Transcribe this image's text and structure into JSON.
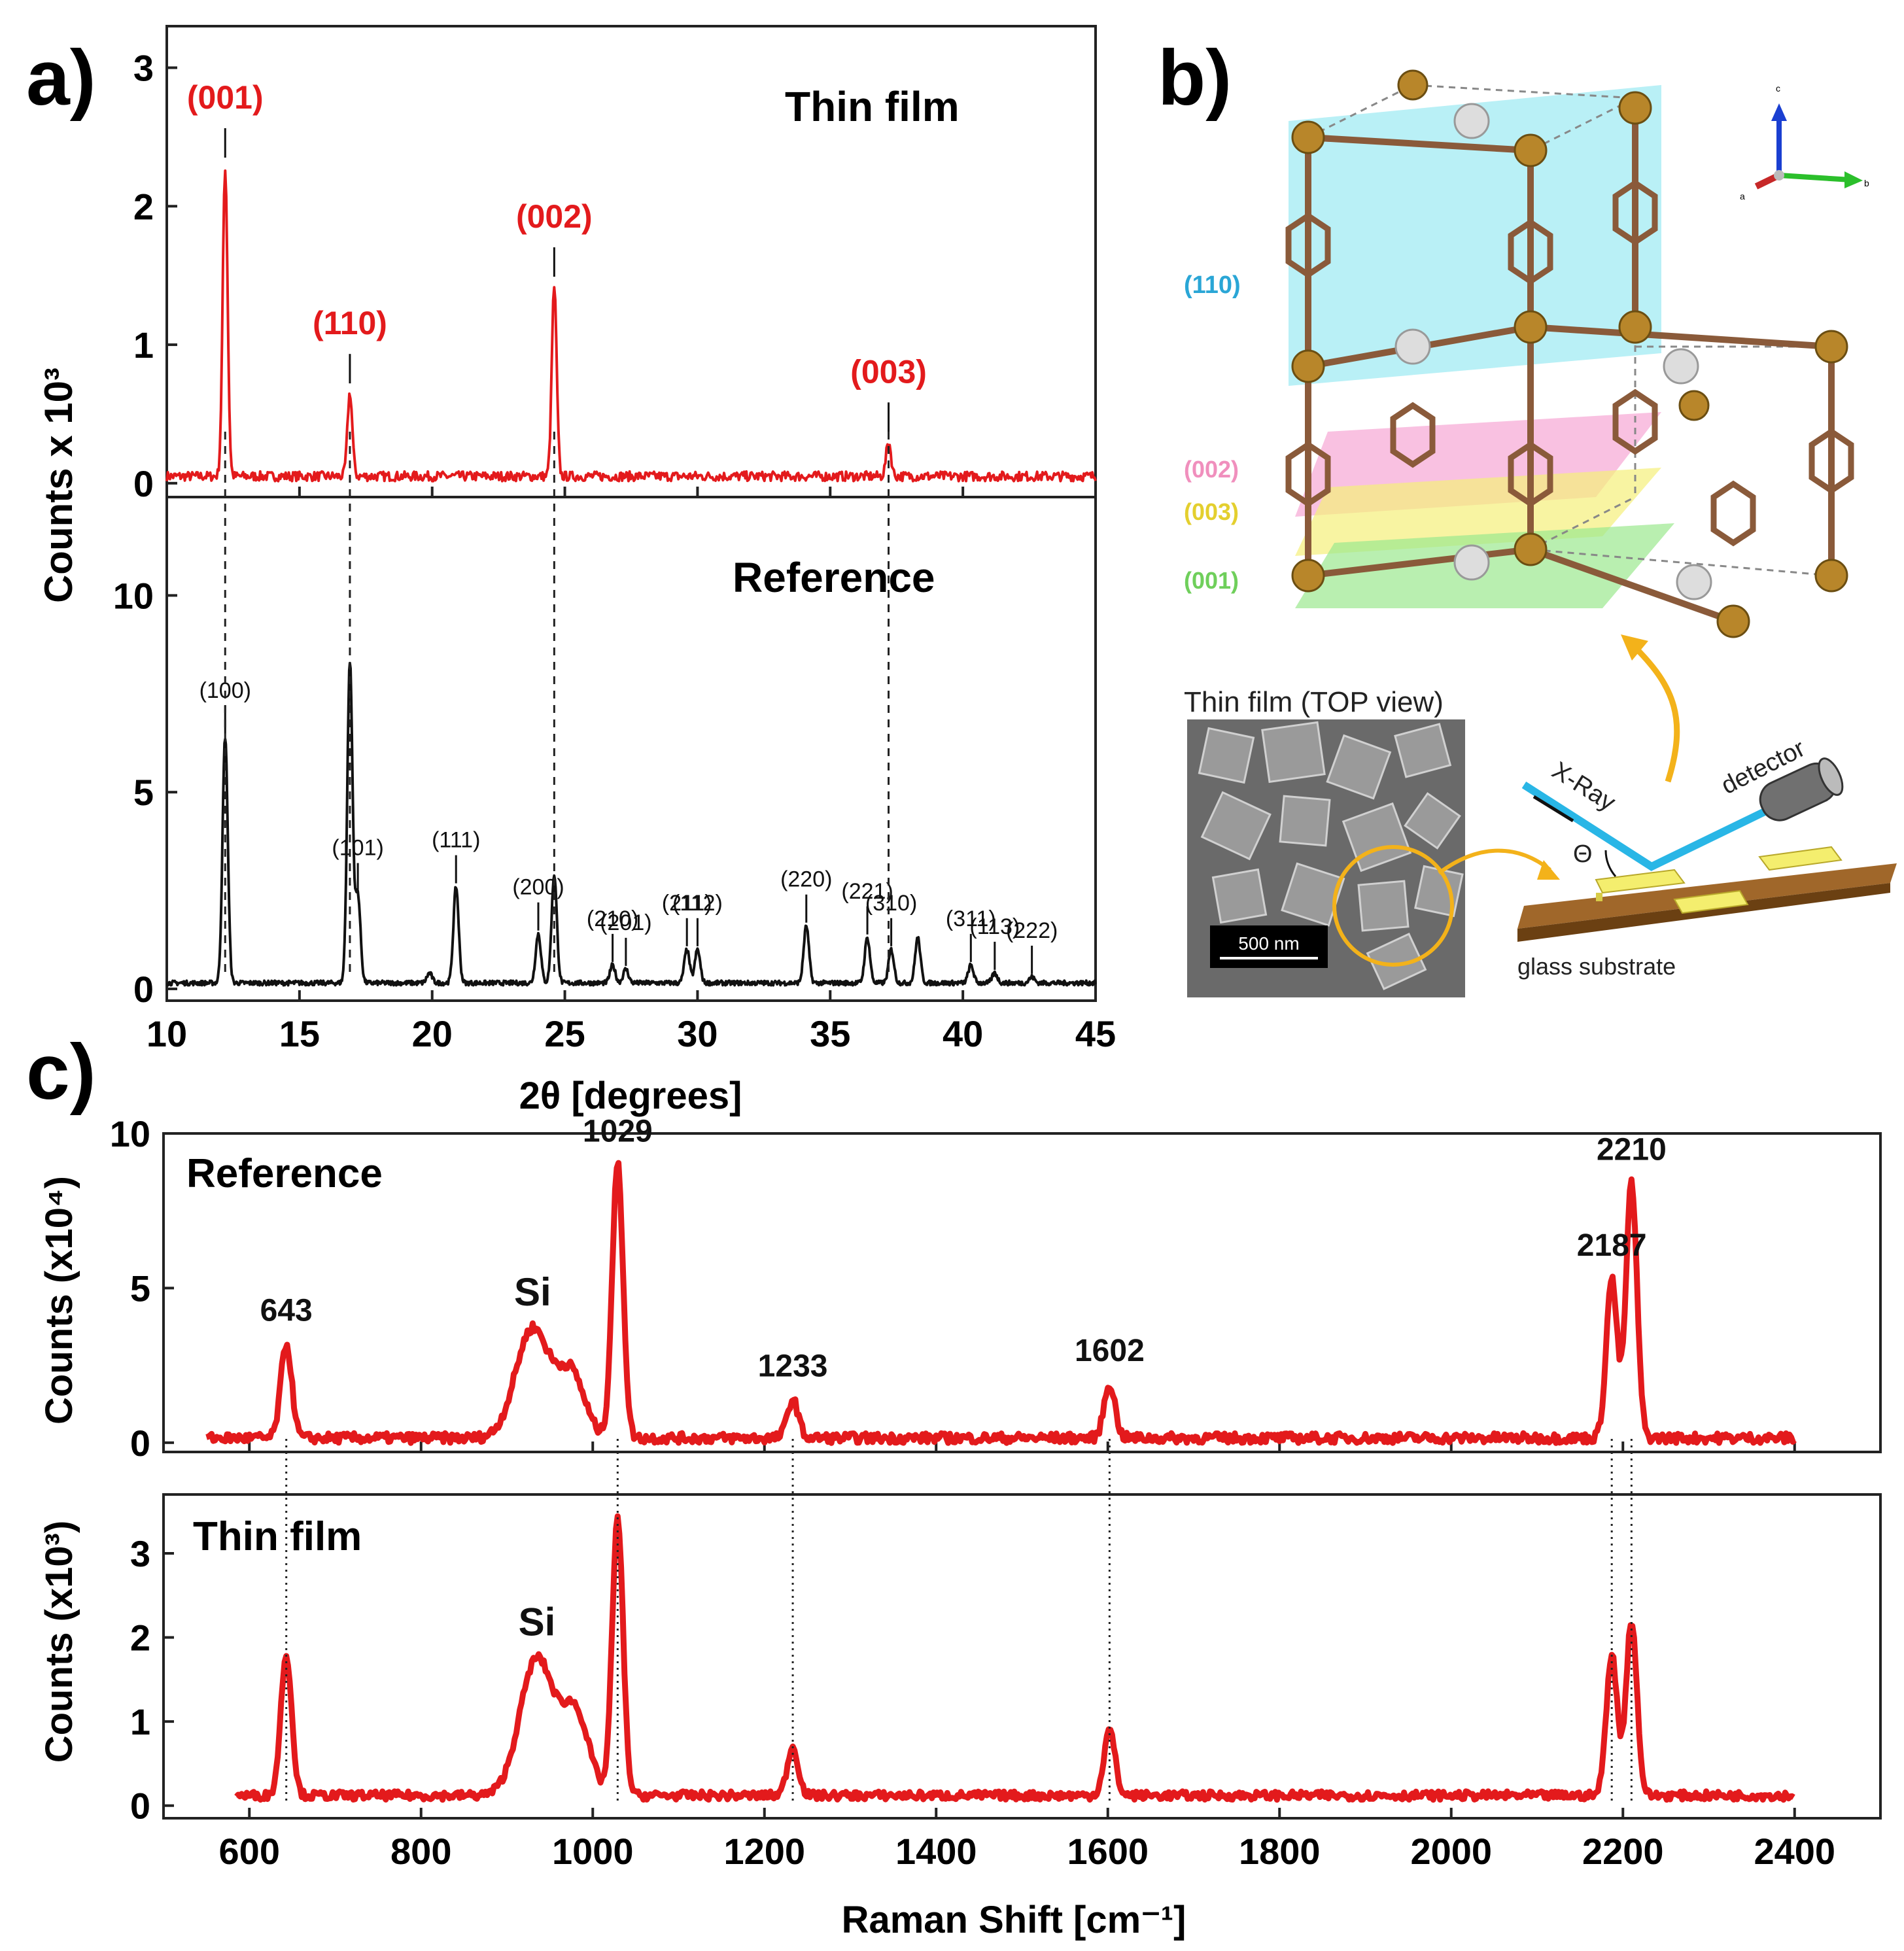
{
  "panel_labels": {
    "a": "a)",
    "b": "b)",
    "c": "c)"
  },
  "colors": {
    "red": "#e31a1c",
    "black": "#111111",
    "cyan_plane": "#7fe3ef",
    "pink_plane": "#f7a6d4",
    "yellow_plane": "#f5f07a",
    "green_plane": "#9be88e",
    "beam": "#29b6e6",
    "arrow": "#f3b21a",
    "label_110": "#2aa6d6",
    "label_002": "#f08fbd",
    "label_003": "#e4cf2e",
    "label_001": "#6fcf5b"
  },
  "panel_b": {
    "plane_labels": [
      "(110)",
      "(002)",
      "(003)",
      "(001)"
    ],
    "inset_title": "Thin film (TOP view)",
    "scale_bar": "500 nm",
    "xray_label": "X-Ray",
    "detector_label": "detector",
    "theta_label": "Θ",
    "substrate_label": "glass substrate",
    "axes_labels": [
      "c",
      "b",
      "a"
    ]
  },
  "chart_data": [
    {
      "type": "line",
      "panel": "a-top",
      "title": "Thin film",
      "ylabel": "Counts x 10³",
      "xlim": [
        10,
        45
      ],
      "ylim": [
        -0.1,
        3.3
      ],
      "yticks": [
        0,
        1,
        2,
        3
      ],
      "baseline": 0.05,
      "peaks": [
        {
          "x": 12.2,
          "y": 2.28,
          "label": "(001)"
        },
        {
          "x": 16.9,
          "y": 0.65,
          "label": "(110)"
        },
        {
          "x": 24.6,
          "y": 1.42,
          "label": "(002)"
        },
        {
          "x": 37.2,
          "y": 0.3,
          "label": "(003)"
        }
      ]
    },
    {
      "type": "line",
      "panel": "a-bottom",
      "title": "Reference",
      "xlabel": "2θ [degrees]",
      "xlim": [
        10,
        45
      ],
      "xticks": [
        10,
        15,
        20,
        25,
        30,
        35,
        40,
        45
      ],
      "ylim": [
        -0.3,
        12.5
      ],
      "yticks": [
        0,
        5,
        10
      ],
      "peaks": [
        {
          "x": 12.2,
          "y": 6.4,
          "label": "(100)"
        },
        {
          "x": 16.9,
          "y": 8.3
        },
        {
          "x": 17.2,
          "y": 2.4,
          "label": "(101)"
        },
        {
          "x": 19.9,
          "y": 0.4
        },
        {
          "x": 20.9,
          "y": 2.6,
          "label": "(111)"
        },
        {
          "x": 24.0,
          "y": 1.4,
          "label": "(200)"
        },
        {
          "x": 24.6,
          "y": 2.9
        },
        {
          "x": 26.8,
          "y": 0.6,
          "label": "(210)"
        },
        {
          "x": 27.3,
          "y": 0.5,
          "label": "(201)"
        },
        {
          "x": 29.6,
          "y": 1.0,
          "label": "(211)"
        },
        {
          "x": 30.0,
          "y": 1.0,
          "label": "(112)"
        },
        {
          "x": 34.1,
          "y": 1.6,
          "label": "(220)"
        },
        {
          "x": 36.4,
          "y": 1.3,
          "label": "(221)"
        },
        {
          "x": 37.3,
          "y": 1.0,
          "label": "(310)"
        },
        {
          "x": 38.3,
          "y": 1.3
        },
        {
          "x": 40.3,
          "y": 0.6,
          "label": "(311)"
        },
        {
          "x": 41.2,
          "y": 0.4,
          "label": "(113)"
        },
        {
          "x": 42.6,
          "y": 0.3,
          "label": "(222)"
        }
      ]
    },
    {
      "type": "line",
      "panel": "c-top",
      "title": "Reference",
      "ylabel": "Counts (x10⁴)",
      "xlim": [
        500,
        2500
      ],
      "ylim": [
        -0.3,
        10
      ],
      "yticks": [
        0,
        5,
        10
      ],
      "peaks": [
        {
          "x": 643,
          "y": 3.2,
          "label": "643"
        },
        {
          "x": 930,
          "y": 3.7,
          "label": "Si"
        },
        {
          "x": 1029,
          "y": 9.0,
          "label": "1029"
        },
        {
          "x": 1233,
          "y": 1.4,
          "label": "1233"
        },
        {
          "x": 1602,
          "y": 1.9,
          "label": "1602"
        },
        {
          "x": 2187,
          "y": 5.3,
          "label": "2187"
        },
        {
          "x": 2210,
          "y": 8.4,
          "label": "2210"
        }
      ]
    },
    {
      "type": "line",
      "panel": "c-bottom",
      "title": "Thin film",
      "ylabel": "Counts (x10³)",
      "xlabel": "Raman Shift [cm⁻¹]",
      "xlim": [
        500,
        2500
      ],
      "xticks": [
        600,
        800,
        1000,
        1200,
        1400,
        1600,
        1800,
        2000,
        2200,
        2400
      ],
      "ylim": [
        -0.15,
        3.7
      ],
      "yticks": [
        0,
        1,
        2,
        3
      ],
      "peaks": [
        {
          "x": 643,
          "y": 1.8
        },
        {
          "x": 935,
          "y": 1.75,
          "label": "Si"
        },
        {
          "x": 1029,
          "y": 3.4
        },
        {
          "x": 1233,
          "y": 0.7
        },
        {
          "x": 1602,
          "y": 0.9
        },
        {
          "x": 2187,
          "y": 1.8
        },
        {
          "x": 2210,
          "y": 2.2
        }
      ]
    }
  ]
}
